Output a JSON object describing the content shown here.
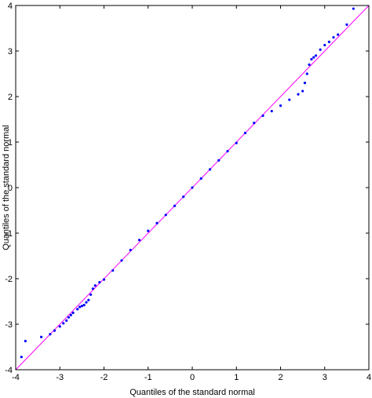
{
  "chart_data": {
    "type": "scatter",
    "xlabel": "Quantiles of the standard normal",
    "ylabel": "Quantiles of the standard normal",
    "xlim": [
      -4,
      4
    ],
    "ylim": [
      -4,
      4
    ],
    "xticks": [
      -4,
      -3,
      -2,
      -1,
      0,
      1,
      2,
      3,
      4
    ],
    "yticks": [
      -4,
      -3,
      -2,
      -1,
      0,
      1,
      2,
      3,
      4
    ],
    "grid": false,
    "reference_line": {
      "from": [
        -4,
        -4
      ],
      "to": [
        4,
        4
      ],
      "color": "#ff00ff"
    },
    "marker_color": "#0000ff",
    "series": [
      {
        "points": [
          [
            -3.87,
            -3.72
          ],
          [
            -3.78,
            -3.37
          ],
          [
            -3.42,
            -3.28
          ],
          [
            -3.22,
            -3.22
          ],
          [
            -3.12,
            -3.14
          ],
          [
            -3.0,
            -3.05
          ],
          [
            -2.92,
            -2.98
          ],
          [
            -2.85,
            -2.92
          ],
          [
            -2.8,
            -2.85
          ],
          [
            -2.75,
            -2.8
          ],
          [
            -2.7,
            -2.75
          ],
          [
            -2.6,
            -2.67
          ],
          [
            -2.55,
            -2.62
          ],
          [
            -2.5,
            -2.6
          ],
          [
            -2.45,
            -2.58
          ],
          [
            -2.4,
            -2.52
          ],
          [
            -2.35,
            -2.47
          ],
          [
            -2.3,
            -2.35
          ],
          [
            -2.25,
            -2.22
          ],
          [
            -2.2,
            -2.15
          ],
          [
            -2.1,
            -2.08
          ],
          [
            -2.0,
            -2.02
          ],
          [
            -1.8,
            -1.82
          ],
          [
            -1.6,
            -1.6
          ],
          [
            -1.4,
            -1.37
          ],
          [
            -1.2,
            -1.15
          ],
          [
            -1.0,
            -0.95
          ],
          [
            -0.8,
            -0.78
          ],
          [
            -0.6,
            -0.6
          ],
          [
            -0.4,
            -0.4
          ],
          [
            -0.2,
            -0.2
          ],
          [
            0.0,
            0.0
          ],
          [
            0.2,
            0.2
          ],
          [
            0.4,
            0.4
          ],
          [
            0.6,
            0.6
          ],
          [
            0.8,
            0.8
          ],
          [
            1.0,
            0.98
          ],
          [
            1.2,
            1.2
          ],
          [
            1.4,
            1.42
          ],
          [
            1.6,
            1.58
          ],
          [
            1.8,
            1.68
          ],
          [
            2.0,
            1.8
          ],
          [
            2.2,
            1.93
          ],
          [
            2.4,
            2.05
          ],
          [
            2.5,
            2.12
          ],
          [
            2.55,
            2.3
          ],
          [
            2.6,
            2.5
          ],
          [
            2.65,
            2.7
          ],
          [
            2.7,
            2.82
          ],
          [
            2.75,
            2.86
          ],
          [
            2.8,
            2.9
          ],
          [
            2.9,
            3.03
          ],
          [
            3.0,
            3.13
          ],
          [
            3.1,
            3.2
          ],
          [
            3.2,
            3.3
          ],
          [
            3.3,
            3.36
          ],
          [
            3.5,
            3.58
          ],
          [
            3.65,
            3.93
          ]
        ]
      }
    ]
  }
}
